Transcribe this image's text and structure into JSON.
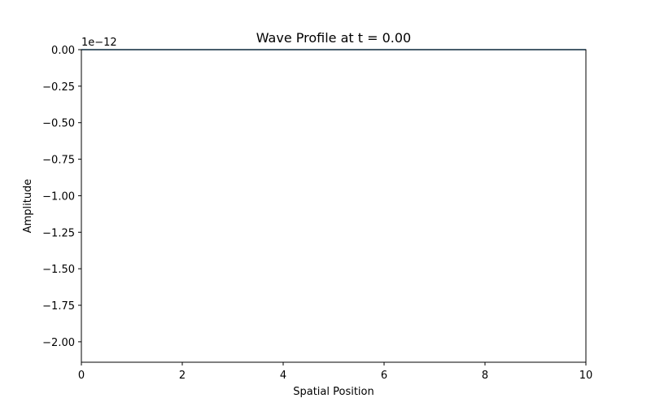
{
  "chart_data": {
    "type": "line",
    "title": "Wave Profile at t = 0.00",
    "xlabel": "Spatial Position",
    "ylabel": "Amplitude",
    "y_offset_label": "1e−12",
    "xlim": [
      0,
      10
    ],
    "ylim": [
      -2.14,
      0.0
    ],
    "x_ticks": [
      0,
      2,
      4,
      6,
      8,
      10
    ],
    "x_tick_labels": [
      "0",
      "2",
      "4",
      "6",
      "8",
      "10"
    ],
    "y_ticks": [
      0.0,
      -0.25,
      -0.5,
      -0.75,
      -1.0,
      -1.25,
      -1.5,
      -1.75,
      -2.0
    ],
    "y_tick_labels": [
      "0.00",
      "−0.25",
      "−0.50",
      "−0.75",
      "−1.00",
      "−1.25",
      "−1.50",
      "−1.75",
      "−2.00"
    ],
    "grid": false,
    "series": [
      {
        "color": "#1f77b4",
        "x": [
          0,
          10
        ],
        "y": [
          0.0,
          0.0
        ]
      }
    ]
  }
}
